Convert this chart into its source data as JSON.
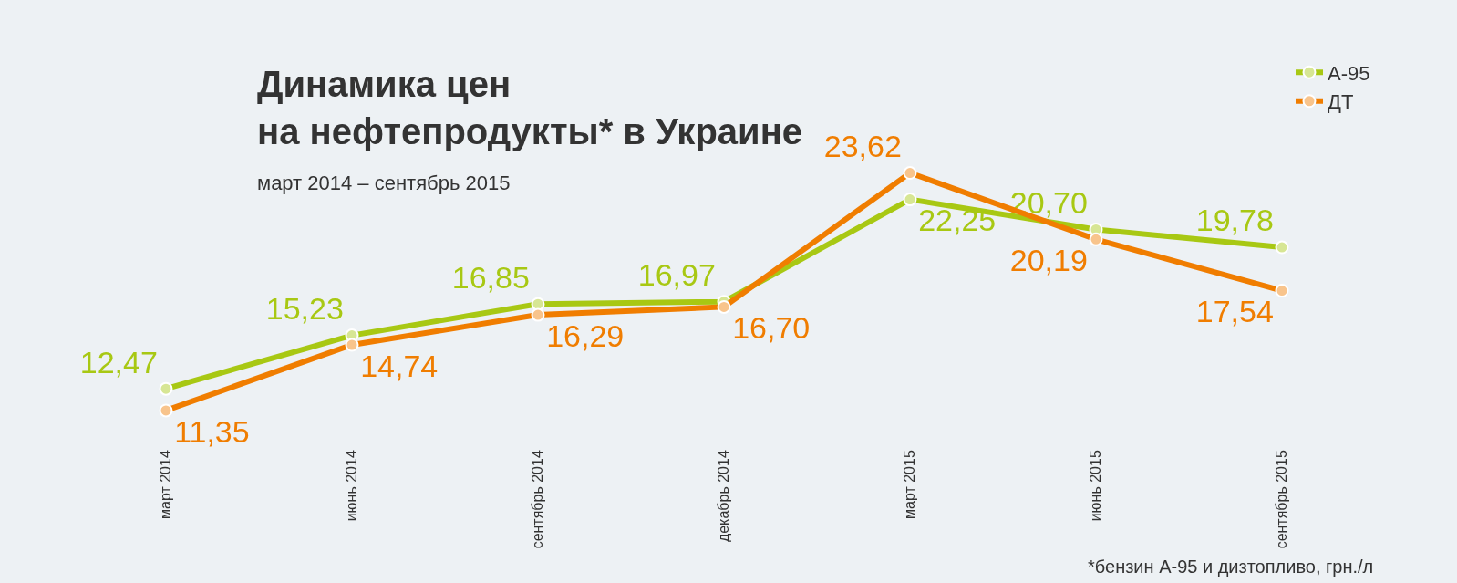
{
  "chart_data": {
    "type": "line",
    "title": "Динамика цен\nна нефтепродукты* в Украине",
    "subtitle": "март 2014 – сентябрь 2015",
    "categories": [
      "март 2014",
      "июнь 2014",
      "сентябрь 2014",
      "декабрь 2014",
      "март 2015",
      "июнь 2015",
      "сентябрь 2015"
    ],
    "series": [
      {
        "name": "А-95",
        "color": "#a8c813",
        "values": [
          12.47,
          15.23,
          16.85,
          16.97,
          22.25,
          20.7,
          19.78
        ],
        "value_labels": [
          "12,47",
          "15,23",
          "16,85",
          "16,97",
          "22,25",
          "20,70",
          "19,78"
        ]
      },
      {
        "name": "ДТ",
        "color": "#f07d00",
        "values": [
          11.35,
          14.74,
          16.29,
          16.7,
          23.62,
          20.19,
          17.54
        ],
        "value_labels": [
          "11,35",
          "14,74",
          "16,29",
          "16,70",
          "23,62",
          "20,19",
          "17,54"
        ]
      }
    ],
    "marker": "circle",
    "line_style": "solid",
    "legend": "top right",
    "grid": false,
    "annotations": [
      "*бензин А-95 и дизтопливо, грн./л"
    ]
  }
}
